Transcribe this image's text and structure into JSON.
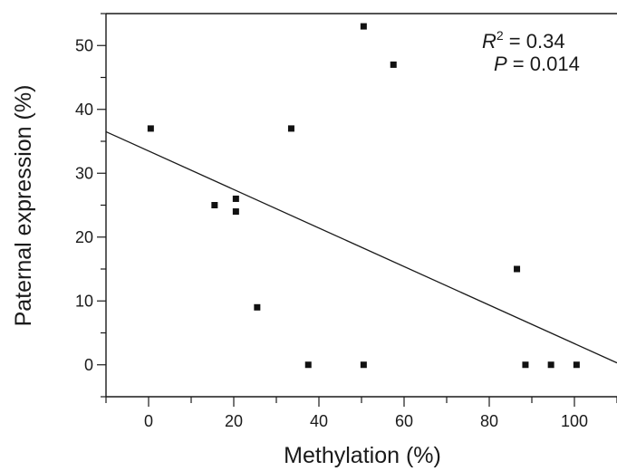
{
  "chart_data": {
    "type": "scatter",
    "xlabel": "Methylation (%)",
    "ylabel": "Paternal expression (%)",
    "xlim": [
      -10,
      110
    ],
    "ylim": [
      -5,
      55
    ],
    "x_ticks": [
      0,
      20,
      40,
      60,
      80,
      100
    ],
    "y_ticks": [
      0,
      10,
      20,
      30,
      40,
      50
    ],
    "grid": false,
    "points": [
      {
        "x": 0.5,
        "y": 37
      },
      {
        "x": 15.5,
        "y": 25
      },
      {
        "x": 20.5,
        "y": 26
      },
      {
        "x": 20.5,
        "y": 24
      },
      {
        "x": 25.5,
        "y": 9
      },
      {
        "x": 33.5,
        "y": 37
      },
      {
        "x": 37.5,
        "y": 0
      },
      {
        "x": 50.5,
        "y": 53
      },
      {
        "x": 50.5,
        "y": 0
      },
      {
        "x": 57.5,
        "y": 47
      },
      {
        "x": 86.5,
        "y": 15
      },
      {
        "x": 88.5,
        "y": 0
      },
      {
        "x": 94.5,
        "y": 0
      },
      {
        "x": 100.5,
        "y": 0
      }
    ],
    "regression_line": {
      "x": [
        -10,
        110
      ],
      "y": [
        36.5,
        0.3
      ]
    },
    "annotation": {
      "r2_symbol": "R",
      "r2_superscript": "2",
      "r2_value": " = 0.34",
      "p_symbol": "P",
      "p_value": " = 0.014"
    }
  }
}
